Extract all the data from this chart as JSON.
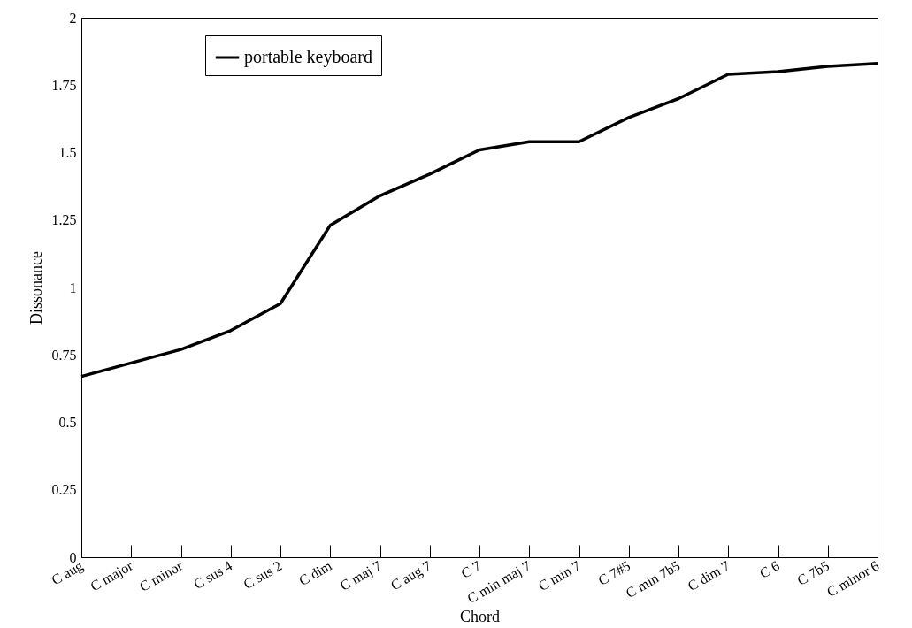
{
  "chart_data": {
    "type": "line",
    "xlabel": "Chord",
    "ylabel": "Dissonance",
    "categories": [
      "C aug",
      "C major",
      "C minor",
      "C sus 4",
      "C sus 2",
      "C dim",
      "C maj 7",
      "C aug 7",
      "C 7",
      "C min maj 7",
      "C min 7",
      "C 7#5",
      "C min 7b5",
      "C dim 7",
      "C 6",
      "C 7b5",
      "C minor 6"
    ],
    "series": [
      {
        "name": "portable keyboard",
        "color": "#000000",
        "values": [
          0.67,
          0.72,
          0.77,
          0.84,
          0.94,
          1.23,
          1.34,
          1.42,
          1.51,
          1.54,
          1.54,
          1.63,
          1.7,
          1.79,
          1.8,
          1.82,
          1.83
        ]
      }
    ],
    "ylim": [
      0,
      2
    ],
    "yticks": [
      0,
      0.25,
      0.5,
      0.75,
      1,
      1.25,
      1.5,
      1.75,
      2
    ],
    "legend": "top left",
    "grid": false,
    "marker": "none",
    "line_style": "solid"
  }
}
